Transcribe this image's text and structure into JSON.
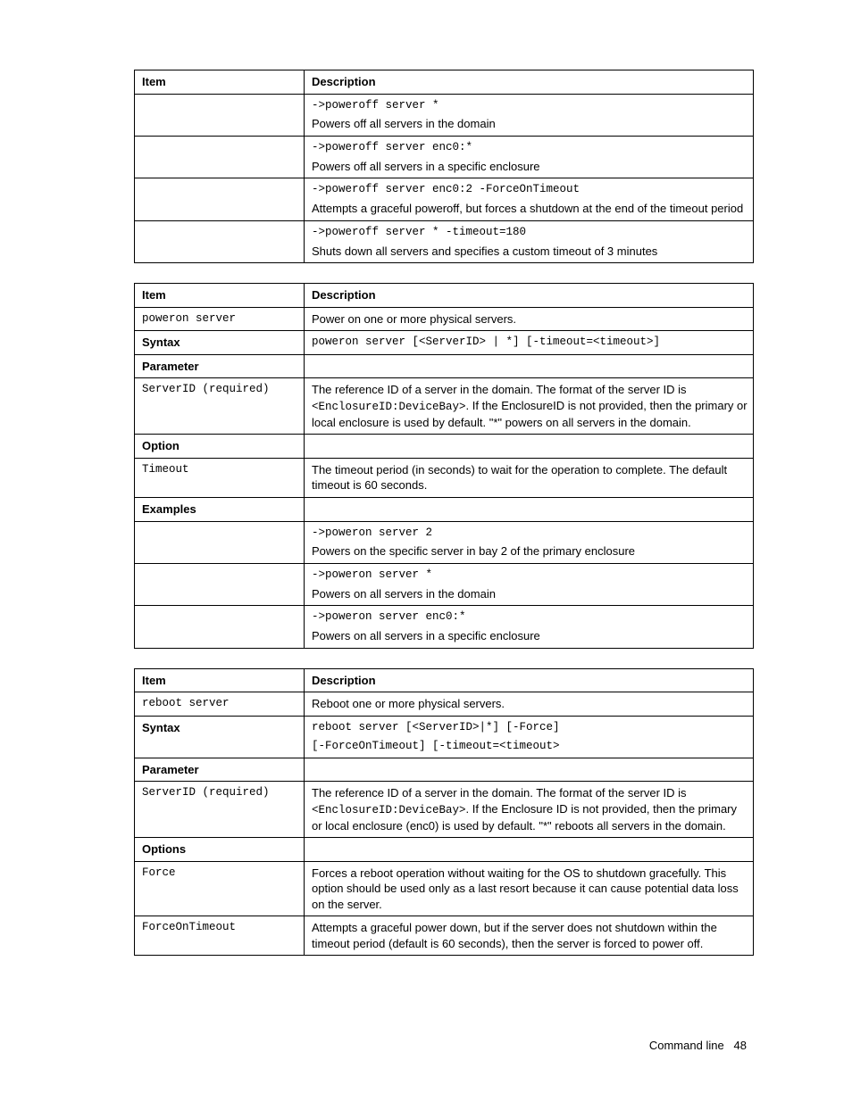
{
  "page": {
    "footer_text": "Command line",
    "footer_page": "48"
  },
  "tables": [
    {
      "header": {
        "col1": "Item",
        "col2": "Description"
      },
      "rows": [
        {
          "item": "",
          "desc": [
            {
              "text": "->poweroff server *",
              "mono": true
            },
            {
              "text": "Powers off all servers in the domain"
            }
          ]
        },
        {
          "item": "",
          "desc": [
            {
              "text": "->poweroff server enc0:*",
              "mono": true
            },
            {
              "text": "Powers off all servers in a specific enclosure"
            }
          ]
        },
        {
          "item": "",
          "desc": [
            {
              "text": "->poweroff server enc0:2 -ForceOnTimeout",
              "mono": true
            },
            {
              "text": "Attempts a graceful poweroff, but forces a shutdown at the end of the timeout period"
            }
          ]
        },
        {
          "item": "",
          "desc": [
            {
              "text": "->poweroff server * -timeout=180",
              "mono": true
            },
            {
              "text": "Shuts down all servers and specifies a custom timeout of 3 minutes"
            }
          ]
        }
      ]
    },
    {
      "header": {
        "col1": "Item",
        "col2": "Description"
      },
      "rows": [
        {
          "item": "poweron server",
          "item_mono": true,
          "desc": [
            {
              "text": "Power on one or more physical servers."
            }
          ]
        },
        {
          "item": "Syntax",
          "item_bold": true,
          "desc": [
            {
              "text": "poweron server [<ServerID> | *] [-timeout=<timeout>]",
              "mono": true
            }
          ]
        },
        {
          "item": "Parameter",
          "item_bold": true,
          "desc": []
        },
        {
          "item": "ServerID (required)",
          "item_mono": true,
          "desc_mixed": {
            "pre": "The reference ID of a server in the domain. The format of the server ID is ",
            "code": "<EnclosureID:DeviceBay>",
            "post": ". If the EnclosureID is not provided, then the primary or local enclosure is used by default. \"*\" powers on all servers in the domain."
          }
        },
        {
          "item": "Option",
          "item_bold": true,
          "desc": []
        },
        {
          "item": "Timeout",
          "item_mono": true,
          "desc": [
            {
              "text": "The timeout period (in seconds) to wait for the operation to complete. The default timeout is 60 seconds."
            }
          ]
        },
        {
          "item": "Examples",
          "item_bold": true,
          "desc": []
        },
        {
          "item": "",
          "desc": [
            {
              "text": "->poweron server 2",
              "mono": true
            },
            {
              "text": "Powers on the specific server in bay 2 of the primary enclosure"
            }
          ]
        },
        {
          "item": "",
          "desc": [
            {
              "text": "->poweron server *",
              "mono": true
            },
            {
              "text": "Powers on all servers in the domain"
            }
          ]
        },
        {
          "item": "",
          "desc": [
            {
              "text": "->poweron server enc0:*",
              "mono": true
            },
            {
              "text": "Powers on all servers in a specific enclosure"
            }
          ]
        }
      ]
    },
    {
      "header": {
        "col1": "Item",
        "col2": "Description"
      },
      "rows": [
        {
          "item": "reboot server",
          "item_mono": true,
          "desc": [
            {
              "text": "Reboot one or more physical servers."
            }
          ]
        },
        {
          "item": "Syntax",
          "item_bold": true,
          "desc": [
            {
              "text": "reboot server [<ServerID>|*] [-Force]",
              "mono": true
            },
            {
              "text": "[-ForceOnTimeout] [-timeout=<timeout>",
              "mono": true
            }
          ]
        },
        {
          "item": "Parameter",
          "item_bold": true,
          "desc": []
        },
        {
          "item": "ServerID (required)",
          "item_mono": true,
          "desc_mixed": {
            "pre": "The reference ID of a server in the domain. The format of the server ID is ",
            "code": "<EnclosureID:DeviceBay>",
            "post": ". If the Enclosure ID is not provided, then the primary or local enclosure (enc0) is used by default. \"*\" reboots all servers in the domain."
          }
        },
        {
          "item": "Options",
          "item_bold": true,
          "desc": []
        },
        {
          "item": "Force",
          "item_mono": true,
          "desc": [
            {
              "text": "Forces a reboot operation without waiting for the OS to shutdown gracefully. This option should be used only as a last resort because it can cause potential data loss on the server."
            }
          ]
        },
        {
          "item": "ForceOnTimeout",
          "item_mono": true,
          "desc": [
            {
              "text": "Attempts a graceful power down, but if the server does not shutdown within the timeout period (default is 60 seconds), then the server is forced to power off."
            }
          ]
        }
      ]
    }
  ]
}
